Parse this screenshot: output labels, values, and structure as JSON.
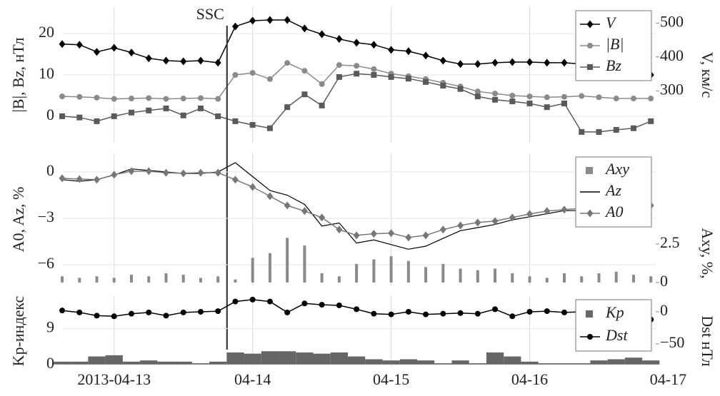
{
  "chart_data": [
    {
      "type": "combo",
      "ylabel": "|B|, Bz, нТл",
      "y2label": "V, км/с",
      "annotations": [
        {
          "text": "SSC",
          "x": 0.815
        }
      ],
      "x": [
        -0.375,
        -0.25,
        -0.125,
        0,
        0.125,
        0.25,
        0.375,
        0.5,
        0.625,
        0.75,
        0.875,
        1,
        1.125,
        1.25,
        1.375,
        1.5,
        1.625,
        1.75,
        1.875,
        2,
        2.125,
        2.25,
        2.375,
        2.5,
        2.625,
        2.75,
        2.875,
        3,
        3.125,
        3.25,
        3.375,
        3.5,
        3.625,
        3.75,
        3.875
      ],
      "ylim": [
        -6.4,
        26.4
      ],
      "yticks": [
        0,
        10,
        20
      ],
      "y2lim": [
        147,
        547
      ],
      "y2ticks": [
        300,
        400,
        500
      ],
      "grid": true,
      "legend": "upper right",
      "series": [
        {
          "name": "V",
          "type": "line",
          "marker": "diamond",
          "color": "#000000",
          "axis": "y2",
          "values": [
            438,
            436,
            415,
            427,
            413,
            396,
            389,
            387,
            389,
            383,
            490,
            507,
            509,
            509,
            484,
            467,
            453,
            442,
            436,
            421,
            417,
            404,
            389,
            379,
            379,
            383,
            385,
            385,
            383,
            383,
            379,
            373,
            366,
            358,
            347
          ]
        },
        {
          "name": "|B|",
          "type": "line",
          "marker": "circle",
          "color": "#8a8a8a",
          "values": [
            4.8,
            4.7,
            4.5,
            4.2,
            4.3,
            4.4,
            4.2,
            4.3,
            4.4,
            4.2,
            10.0,
            10.5,
            9.0,
            12.9,
            11.0,
            7.8,
            12.4,
            12.2,
            11.4,
            10.3,
            9.7,
            9.0,
            8.1,
            7.2,
            6.0,
            5.5,
            5.0,
            4.8,
            4.6,
            4.7,
            4.9,
            4.6,
            4.3,
            4.3,
            4.3
          ]
        },
        {
          "name": "Bz",
          "type": "line",
          "marker": "square",
          "color": "#5a5a5a",
          "values": [
            0,
            -0.3,
            -1.2,
            0,
            0.9,
            1.4,
            1.9,
            0.2,
            1.9,
            0,
            -1.2,
            -2.1,
            -2.9,
            2.2,
            5.3,
            2.6,
            9.5,
            10.3,
            10,
            9.5,
            9.1,
            8.3,
            7.4,
            6.6,
            4.8,
            4.0,
            3.6,
            3.1,
            2.2,
            3.1,
            -3.8,
            -3.8,
            -3.3,
            -2.9,
            -1.2
          ]
        }
      ]
    },
    {
      "type": "combo",
      "ylabel": "A0, Az, %",
      "y2label": "Axy, %,",
      "y2label_color": "#8a8a8a",
      "x": [
        -0.375,
        -0.25,
        -0.125,
        0,
        0.125,
        0.25,
        0.375,
        0.5,
        0.625,
        0.75,
        0.875,
        1,
        1.125,
        1.25,
        1.375,
        1.5,
        1.625,
        1.75,
        1.875,
        2,
        2.125,
        2.25,
        2.375,
        2.5,
        2.625,
        2.75,
        2.875,
        3,
        3.125,
        3.25,
        3.375,
        3.5,
        3.625,
        3.75,
        3.875
      ],
      "ylim": [
        -7.34,
        1.2
      ],
      "yticks": [
        0,
        {
          "value": -3,
          "label": "−3"
        },
        {
          "value": -6,
          "label": "−6"
        }
      ],
      "y2lim": [
        -0.19,
        8.38
      ],
      "y2ticks": [
        0,
        2.5
      ],
      "grid": true,
      "legend": "upper right",
      "series": [
        {
          "name": "Axy",
          "type": "bar",
          "color": "#8a8a8a",
          "axis": "y2",
          "values": [
            0.4,
            0.3,
            0.4,
            0.3,
            0.5,
            0.4,
            0.6,
            0.5,
            0.3,
            0.4,
            0.2,
            1.6,
            1.9,
            2.9,
            2.4,
            0.6,
            0.4,
            1.2,
            1.5,
            1.7,
            1.4,
            1.0,
            1.2,
            0.9,
            0.8,
            0.9,
            0.6,
            0.4,
            0.3,
            0.6,
            0.4,
            0.6,
            0.7,
            0.5,
            0.4
          ]
        },
        {
          "name": "Az",
          "type": "line",
          "color": "#000000",
          "values": [
            -0.5,
            -0.6,
            -0.5,
            -0.2,
            0.2,
            0.1,
            0,
            -0.1,
            -0.1,
            0,
            0.6,
            -0.3,
            -1.2,
            -1.5,
            -2.1,
            -3.5,
            -3.3,
            -4.6,
            -4.4,
            -4.7,
            -5.0,
            -4.8,
            -4.3,
            -3.8,
            -3.6,
            -3.4,
            -3.1,
            -2.9,
            -2.7,
            -2.5,
            -2.5,
            -2.4,
            -2.4,
            -2.3,
            -2.2
          ]
        },
        {
          "name": "A0",
          "type": "line",
          "marker": "diamond",
          "color": "#777777",
          "label_color": "#777777",
          "values": [
            -0.41,
            -0.46,
            -0.5,
            -0.18,
            0.05,
            0.05,
            -0.05,
            -0.09,
            -0.05,
            -0.05,
            -0.5,
            -0.97,
            -1.57,
            -2.17,
            -2.53,
            -2.95,
            -3.73,
            -4.1,
            -4.0,
            -3.96,
            -4.24,
            -4.1,
            -3.73,
            -3.46,
            -3.27,
            -3.18,
            -2.95,
            -2.72,
            -2.53,
            -2.44,
            -2.35,
            -2.35,
            -2.3,
            -2.26,
            -2.17
          ]
        }
      ]
    },
    {
      "type": "combo",
      "ylabel": "Kp-индекс",
      "y2label": "Dst нТл",
      "x": [
        -0.375,
        -0.25,
        -0.125,
        0,
        0.125,
        0.25,
        0.375,
        0.5,
        0.625,
        0.75,
        0.875,
        1,
        1.125,
        1.25,
        1.375,
        1.5,
        1.625,
        1.75,
        1.875,
        2,
        2.125,
        2.25,
        2.375,
        2.5,
        2.625,
        2.75,
        2.875,
        3,
        3.125,
        3.25,
        3.375,
        3.5,
        3.625,
        3.75,
        3.875
      ],
      "xlim": [
        -0.37,
        3.91
      ],
      "xticks": [
        {
          "value": 0,
          "label": "2013-04-13"
        },
        {
          "value": 1,
          "label": "04-14"
        },
        {
          "value": 2,
          "label": "04-15"
        },
        {
          "value": 3,
          "label": "04-16"
        },
        {
          "value": 4,
          "label": "04-17"
        }
      ],
      "ylim": [
        -0.4,
        17.1
      ],
      "yticks": [
        0,
        9
      ],
      "y2lim": [
        -84.4,
        24.4
      ],
      "y2ticks": [
        {
          "value": -50,
          "label": "−50"
        },
        0
      ],
      "grid": true,
      "legend": "upper right",
      "series": [
        {
          "name": "Kp",
          "type": "bar",
          "color": "#666666",
          "label_color": "#777777",
          "values": [
            0.7,
            0.7,
            2.0,
            2.3,
            0.7,
            1.0,
            0.7,
            0.7,
            0.3,
            0.7,
            3.0,
            2.7,
            3.3,
            3.3,
            3.0,
            2.7,
            3.0,
            2.0,
            1.3,
            1.0,
            1.3,
            1.0,
            0.3,
            1.0,
            0.3,
            3.0,
            2.0,
            0.7,
            0.3,
            0.3,
            0.3,
            1.0,
            1.3,
            1.7,
            1.0
          ]
        },
        {
          "name": "Dst",
          "type": "line",
          "marker": "circle",
          "color": "#000000",
          "axis": "y2",
          "values": [
            2,
            -1,
            -6,
            -7,
            -3,
            -1,
            -6,
            -1,
            0,
            1,
            16,
            19,
            16,
            -1,
            13,
            11,
            10,
            4,
            -3,
            -4,
            0,
            -4,
            -3,
            -2,
            -3,
            4,
            -7,
            0,
            1,
            -1,
            0,
            -1,
            -7,
            -9,
            -12
          ]
        }
      ]
    }
  ]
}
